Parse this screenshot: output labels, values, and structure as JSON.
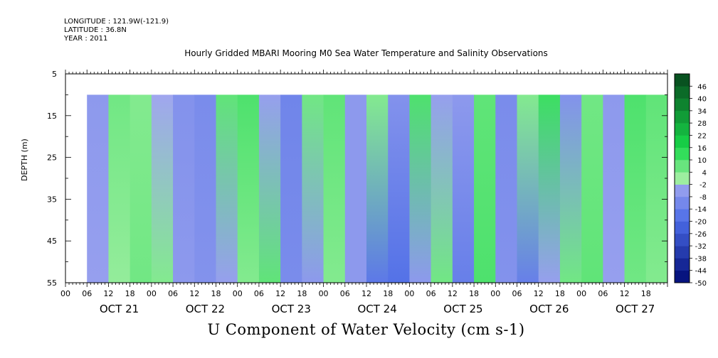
{
  "header": {
    "longitude": "LONGITUDE : 121.9W(-121.9)",
    "latitude": "LATITUDE : 36.8N",
    "year": "YEAR : 2011",
    "title": "Hourly Gridded MBARI Mooring M0 Sea Water Temperature and Salinity Observations"
  },
  "chart_data": {
    "type": "heatmap",
    "title": "Hourly Gridded MBARI Mooring M0 Sea Water Temperature and Salinity Observations",
    "variable_label": "U Component of Water Velocity (cm s-1)",
    "ylabel": "DEPTH (m)",
    "y_axis": {
      "ticks": [
        5,
        15,
        25,
        35,
        45,
        55
      ],
      "range": [
        5,
        55
      ],
      "inverted": true,
      "data_range": [
        10,
        55
      ]
    },
    "x_axis": {
      "days": [
        "OCT 21",
        "OCT 22",
        "OCT 23",
        "OCT 24",
        "OCT 25",
        "OCT 26",
        "OCT 27"
      ],
      "hour_ticks": [
        "00",
        "06",
        "12",
        "18"
      ],
      "range_hours": [
        -24,
        144
      ],
      "data_start_hour": -18,
      "data_end_hour": 138
    },
    "colorbar": {
      "labels": [
        "46",
        "40",
        "34",
        "28",
        "22",
        "16",
        "10",
        "4",
        "-2",
        "-8",
        "-14",
        "-20",
        "-26",
        "-32",
        "-38",
        "-44",
        "-50"
      ],
      "range": [
        -50,
        52
      ],
      "step": 6
    },
    "colors": {
      "positive": "#19d94a",
      "positive_light": "#a6efa6",
      "negative_light": "#a9acf0",
      "negative": "#4a6be6",
      "deep_negative": "#000a73",
      "deep_positive": "#06461c"
    },
    "columns": [
      {
        "hour": -18,
        "top": -6,
        "bottom": -4
      },
      {
        "hour": -12,
        "top": 6,
        "bottom": 2
      },
      {
        "hour": -6,
        "top": 4,
        "bottom": 6
      },
      {
        "hour": 0,
        "top": -2,
        "bottom": 4
      },
      {
        "hour": 6,
        "top": -8,
        "bottom": -6
      },
      {
        "hour": 12,
        "top": -10,
        "bottom": -8
      },
      {
        "hour": 18,
        "top": 8,
        "bottom": -4
      },
      {
        "hour": 24,
        "top": 10,
        "bottom": 4
      },
      {
        "hour": 30,
        "top": -4,
        "bottom": 8
      },
      {
        "hour": 36,
        "top": -12,
        "bottom": -10
      },
      {
        "hour": 42,
        "top": 6,
        "bottom": -6
      },
      {
        "hour": 48,
        "top": 8,
        "bottom": 4
      },
      {
        "hour": 54,
        "top": -6,
        "bottom": -6
      },
      {
        "hour": 60,
        "top": 4,
        "bottom": -16
      },
      {
        "hour": 66,
        "top": -8,
        "bottom": -18
      },
      {
        "hour": 72,
        "top": 10,
        "bottom": -6
      },
      {
        "hour": 78,
        "top": -4,
        "bottom": 6
      },
      {
        "hour": 84,
        "top": -6,
        "bottom": -14
      },
      {
        "hour": 90,
        "top": 8,
        "bottom": 10
      },
      {
        "hour": 96,
        "top": -10,
        "bottom": -8
      },
      {
        "hour": 102,
        "top": 4,
        "bottom": -14
      },
      {
        "hour": 108,
        "top": 12,
        "bottom": -4
      },
      {
        "hour": 114,
        "top": -8,
        "bottom": 6
      },
      {
        "hour": 120,
        "top": 6,
        "bottom": 8
      },
      {
        "hour": 126,
        "top": -6,
        "bottom": -4
      },
      {
        "hour": 132,
        "top": 10,
        "bottom": 6
      },
      {
        "hour": 138,
        "top": 8,
        "bottom": 4
      }
    ]
  }
}
